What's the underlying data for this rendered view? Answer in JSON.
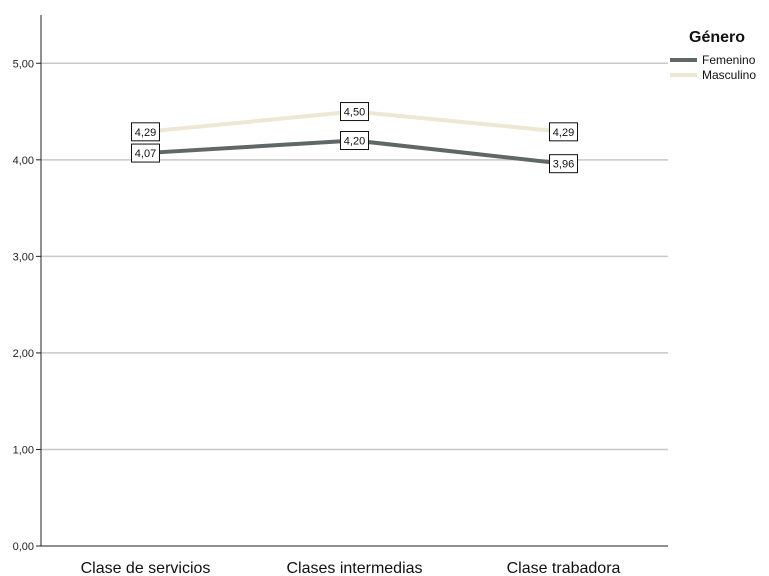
{
  "chart_data": {
    "type": "line",
    "title": "",
    "xlabel": "",
    "ylabel": "",
    "categories": [
      "Clase de servicios",
      "Clases intermedias",
      "Clase trabadora"
    ],
    "series": [
      {
        "name": "Femenino",
        "values": [
          4.07,
          4.2,
          3.96
        ],
        "labels": [
          "4,07",
          "4,20",
          "3,96"
        ],
        "color": "#5f6866"
      },
      {
        "name": "Masculino",
        "values": [
          4.29,
          4.5,
          4.29
        ],
        "labels": [
          "4,29",
          "4,50",
          "4,29"
        ],
        "color": "#ede7d3"
      }
    ],
    "ylim": [
      0,
      5.5
    ],
    "yticks": [
      0,
      1,
      2,
      3,
      4,
      5
    ],
    "ytick_labels": [
      "0,00",
      "1,00",
      "2,00",
      "3,00",
      "4,00",
      "5,00"
    ],
    "grid": true,
    "legend": {
      "title": "Género",
      "position": "top-right"
    }
  }
}
